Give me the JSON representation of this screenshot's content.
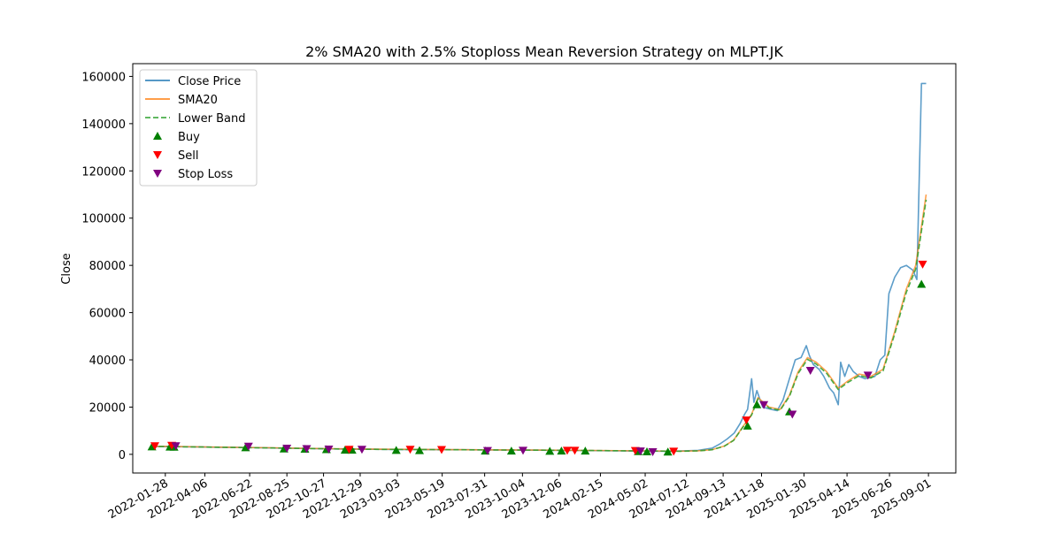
{
  "chart_data": {
    "type": "line",
    "title": "2% SMA20 with 2.5% Stoploss Mean Reversion Strategy on MLPT.JK",
    "xlabel": "",
    "ylabel": "Close",
    "xlim": [
      "2021-12-03",
      "2025-10-18"
    ],
    "ylim": [
      -7900,
      165400
    ],
    "yticks": [
      0,
      20000,
      40000,
      60000,
      80000,
      100000,
      120000,
      140000,
      160000
    ],
    "xticks": [
      "2022-01-28",
      "2022-04-06",
      "2022-06-22",
      "2022-08-25",
      "2022-10-27",
      "2022-12-29",
      "2023-03-03",
      "2023-05-19",
      "2023-07-31",
      "2023-10-04",
      "2023-12-06",
      "2024-02-15",
      "2024-05-02",
      "2024-07-12",
      "2024-09-13",
      "2024-11-18",
      "2025-01-30",
      "2025-04-14",
      "2025-06-26",
      "2025-09-01"
    ],
    "grid": false,
    "legend_position": "upper-left",
    "colors": {
      "close": "#1f77b4",
      "sma": "#ff7f0e",
      "lower": "#2ca02c",
      "buy": "#008000",
      "sell": "#ff0000",
      "stop": "#800080"
    },
    "series": [
      {
        "name": "Close Price",
        "style": "solid",
        "points": [
          [
            "2022-01-03",
            3300
          ],
          [
            "2022-02-01",
            3250
          ],
          [
            "2022-03-01",
            3200
          ],
          [
            "2022-04-01",
            3100
          ],
          [
            "2022-05-01",
            3000
          ],
          [
            "2022-06-01",
            2950
          ],
          [
            "2022-07-01",
            2850
          ],
          [
            "2022-08-01",
            2700
          ],
          [
            "2022-09-01",
            2550
          ],
          [
            "2022-10-01",
            2450
          ],
          [
            "2022-11-01",
            2350
          ],
          [
            "2022-12-01",
            2250
          ],
          [
            "2023-01-01",
            2150
          ],
          [
            "2023-03-01",
            2050
          ],
          [
            "2023-05-01",
            2000
          ],
          [
            "2023-07-01",
            1950
          ],
          [
            "2023-09-01",
            1850
          ],
          [
            "2023-11-01",
            1750
          ],
          [
            "2024-01-01",
            1650
          ],
          [
            "2024-03-01",
            1550
          ],
          [
            "2024-05-01",
            1400
          ],
          [
            "2024-06-15",
            1300
          ],
          [
            "2024-08-01",
            1700
          ],
          [
            "2024-08-25",
            2600
          ],
          [
            "2024-09-08",
            4500
          ],
          [
            "2024-09-20",
            6500
          ],
          [
            "2024-10-02",
            9000
          ],
          [
            "2024-10-12",
            13000
          ],
          [
            "2024-10-20",
            17000
          ],
          [
            "2024-10-25",
            19000
          ],
          [
            "2024-11-01",
            32000
          ],
          [
            "2024-11-05",
            22000
          ],
          [
            "2024-11-10",
            27000
          ],
          [
            "2024-11-20",
            20000
          ],
          [
            "2024-12-05",
            19000
          ],
          [
            "2024-12-15",
            18500
          ],
          [
            "2024-12-25",
            23000
          ],
          [
            "2025-01-05",
            32000
          ],
          [
            "2025-01-15",
            40000
          ],
          [
            "2025-01-25",
            41000
          ],
          [
            "2025-02-03",
            46000
          ],
          [
            "2025-02-08",
            42000
          ],
          [
            "2025-02-15",
            38000
          ],
          [
            "2025-02-25",
            36000
          ],
          [
            "2025-03-05",
            33000
          ],
          [
            "2025-03-15",
            28000
          ],
          [
            "2025-03-22",
            26000
          ],
          [
            "2025-03-30",
            21000
          ],
          [
            "2025-04-03",
            39000
          ],
          [
            "2025-04-10",
            33000
          ],
          [
            "2025-04-17",
            38000
          ],
          [
            "2025-04-25",
            35000
          ],
          [
            "2025-05-05",
            33000
          ],
          [
            "2025-05-15",
            32000
          ],
          [
            "2025-06-01",
            33000
          ],
          [
            "2025-06-10",
            40000
          ],
          [
            "2025-06-18",
            42000
          ],
          [
            "2025-06-25",
            68000
          ],
          [
            "2025-07-05",
            75000
          ],
          [
            "2025-07-15",
            79000
          ],
          [
            "2025-07-25",
            80000
          ],
          [
            "2025-08-05",
            78000
          ],
          [
            "2025-08-12",
            74000
          ],
          [
            "2025-08-20",
            157000
          ],
          [
            "2025-08-28",
            157000
          ]
        ]
      },
      {
        "name": "SMA20",
        "style": "solid",
        "points": [
          [
            "2022-01-03",
            3400
          ],
          [
            "2022-02-01",
            3350
          ],
          [
            "2022-03-01",
            3250
          ],
          [
            "2022-04-01",
            3150
          ],
          [
            "2022-06-01",
            2950
          ],
          [
            "2022-08-01",
            2750
          ],
          [
            "2022-10-01",
            2500
          ],
          [
            "2022-12-01",
            2300
          ],
          [
            "2023-02-01",
            2150
          ],
          [
            "2023-05-01",
            2050
          ],
          [
            "2023-08-01",
            1900
          ],
          [
            "2023-11-01",
            1800
          ],
          [
            "2024-02-01",
            1650
          ],
          [
            "2024-05-01",
            1450
          ],
          [
            "2024-07-01",
            1350
          ],
          [
            "2024-08-01",
            1500
          ],
          [
            "2024-08-25",
            2000
          ],
          [
            "2024-09-15",
            3500
          ],
          [
            "2024-10-01",
            6000
          ],
          [
            "2024-10-15",
            11000
          ],
          [
            "2024-11-01",
            17000
          ],
          [
            "2024-11-12",
            24000
          ],
          [
            "2024-12-01",
            20000
          ],
          [
            "2024-12-20",
            19000
          ],
          [
            "2025-01-05",
            25000
          ],
          [
            "2025-01-20",
            35000
          ],
          [
            "2025-02-05",
            41000
          ],
          [
            "2025-02-20",
            39000
          ],
          [
            "2025-03-10",
            35000
          ],
          [
            "2025-03-30",
            28000
          ],
          [
            "2025-04-15",
            31000
          ],
          [
            "2025-05-05",
            34000
          ],
          [
            "2025-05-25",
            33000
          ],
          [
            "2025-06-15",
            36000
          ],
          [
            "2025-07-05",
            52000
          ],
          [
            "2025-07-25",
            70000
          ],
          [
            "2025-08-10",
            80000
          ],
          [
            "2025-08-28",
            110000
          ]
        ]
      },
      {
        "name": "Lower Band",
        "style": "dashed",
        "points": [
          [
            "2022-01-03",
            3330
          ],
          [
            "2022-02-01",
            3280
          ],
          [
            "2022-03-01",
            3180
          ],
          [
            "2022-04-01",
            3090
          ],
          [
            "2022-06-01",
            2890
          ],
          [
            "2022-08-01",
            2700
          ],
          [
            "2022-10-01",
            2450
          ],
          [
            "2022-12-01",
            2250
          ],
          [
            "2023-02-01",
            2110
          ],
          [
            "2023-05-01",
            2010
          ],
          [
            "2023-08-01",
            1860
          ],
          [
            "2023-11-01",
            1760
          ],
          [
            "2024-02-01",
            1620
          ],
          [
            "2024-05-01",
            1420
          ],
          [
            "2024-07-01",
            1320
          ],
          [
            "2024-08-01",
            1470
          ],
          [
            "2024-08-25",
            1960
          ],
          [
            "2024-09-15",
            3430
          ],
          [
            "2024-10-01",
            5880
          ],
          [
            "2024-10-15",
            10780
          ],
          [
            "2024-11-01",
            16660
          ],
          [
            "2024-11-12",
            23520
          ],
          [
            "2024-12-01",
            19600
          ],
          [
            "2024-12-20",
            18620
          ],
          [
            "2025-01-05",
            24500
          ],
          [
            "2025-01-20",
            34300
          ],
          [
            "2025-02-05",
            40180
          ],
          [
            "2025-02-20",
            38220
          ],
          [
            "2025-03-10",
            34300
          ],
          [
            "2025-03-30",
            27440
          ],
          [
            "2025-04-15",
            30380
          ],
          [
            "2025-05-05",
            33320
          ],
          [
            "2025-05-25",
            32340
          ],
          [
            "2025-06-15",
            35280
          ],
          [
            "2025-07-05",
            50960
          ],
          [
            "2025-07-25",
            68600
          ],
          [
            "2025-08-10",
            78400
          ],
          [
            "2025-08-28",
            107800
          ]
        ]
      }
    ],
    "markers": [
      {
        "name": "Buy",
        "shape": "triangle-up",
        "points": [
          [
            "2022-01-05",
            3200
          ],
          [
            "2022-02-05",
            3100
          ],
          [
            "2022-02-12",
            3050
          ],
          [
            "2022-06-15",
            2800
          ],
          [
            "2022-08-20",
            2300
          ],
          [
            "2022-09-25",
            2200
          ],
          [
            "2022-11-01",
            2000
          ],
          [
            "2022-12-03",
            1800
          ],
          [
            "2022-12-15",
            1800
          ],
          [
            "2023-03-01",
            1700
          ],
          [
            "2023-04-10",
            1600
          ],
          [
            "2023-08-01",
            1400
          ],
          [
            "2023-09-15",
            1400
          ],
          [
            "2023-11-20",
            1300
          ],
          [
            "2023-12-10",
            1400
          ],
          [
            "2024-01-20",
            1400
          ],
          [
            "2024-04-20",
            1200
          ],
          [
            "2024-05-05",
            1100
          ],
          [
            "2024-06-10",
            1000
          ],
          [
            "2024-10-25",
            12000
          ],
          [
            "2024-11-10",
            21000
          ],
          [
            "2025-01-05",
            18000
          ],
          [
            "2025-08-20",
            72000
          ]
        ]
      },
      {
        "name": "Sell",
        "shape": "triangle-down",
        "points": [
          [
            "2022-01-10",
            3600
          ],
          [
            "2022-02-08",
            3800
          ],
          [
            "2022-12-10",
            2100
          ],
          [
            "2023-03-25",
            2100
          ],
          [
            "2023-05-18",
            2000
          ],
          [
            "2023-12-20",
            1700
          ],
          [
            "2024-01-02",
            1700
          ],
          [
            "2024-04-15",
            1600
          ],
          [
            "2024-06-20",
            1300
          ],
          [
            "2024-10-23",
            14500
          ],
          [
            "2025-08-22",
            80500
          ]
        ]
      },
      {
        "name": "Stop Loss",
        "shape": "triangle-down",
        "points": [
          [
            "2022-02-15",
            3600
          ],
          [
            "2022-06-20",
            3400
          ],
          [
            "2022-08-25",
            2600
          ],
          [
            "2022-09-28",
            2400
          ],
          [
            "2022-11-05",
            2200
          ],
          [
            "2023-01-01",
            2100
          ],
          [
            "2023-08-05",
            1600
          ],
          [
            "2023-10-05",
            1700
          ],
          [
            "2024-04-24",
            1400
          ],
          [
            "2024-05-15",
            1100
          ],
          [
            "2024-11-22",
            21000
          ],
          [
            "2025-01-10",
            17000
          ],
          [
            "2025-02-10",
            35500
          ],
          [
            "2025-05-20",
            33500
          ]
        ]
      }
    ]
  }
}
